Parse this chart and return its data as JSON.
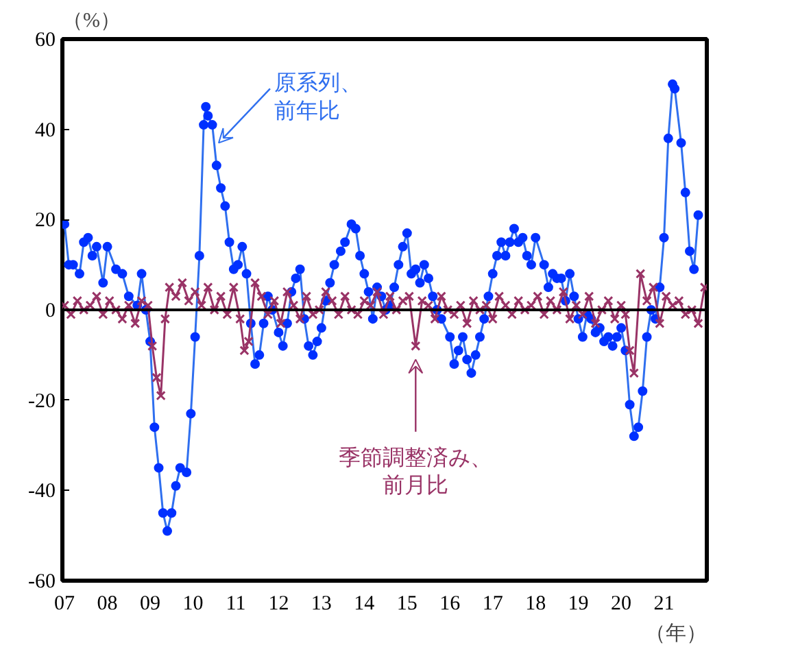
{
  "chart_data": {
    "type": "line",
    "ylabel": "（%）",
    "xlabel": "（年）",
    "xlim": [
      2006.95,
      2022.0
    ],
    "ylim": [
      -60,
      60
    ],
    "yticks": [
      -60,
      -40,
      -20,
      0,
      20,
      40,
      60
    ],
    "xticks": [
      {
        "value": 2007,
        "label": "07"
      },
      {
        "value": 2008,
        "label": "08"
      },
      {
        "value": 2009,
        "label": "09"
      },
      {
        "value": 2010,
        "label": "10"
      },
      {
        "value": 2011,
        "label": "11"
      },
      {
        "value": 2012,
        "label": "12"
      },
      {
        "value": 2013,
        "label": "13"
      },
      {
        "value": 2014,
        "label": "14"
      },
      {
        "value": 2015,
        "label": "15"
      },
      {
        "value": 2016,
        "label": "16"
      },
      {
        "value": 2017,
        "label": "17"
      },
      {
        "value": 2018,
        "label": "18"
      },
      {
        "value": 2019,
        "label": "19"
      },
      {
        "value": 2020,
        "label": "20"
      },
      {
        "value": 2021,
        "label": "21"
      }
    ],
    "grid": false,
    "line_style": "solid",
    "ref_lines": [
      {
        "axis": "y",
        "value": 0,
        "color": "#000000"
      }
    ],
    "series": [
      {
        "name": "原系列、前年比",
        "color": "#2f6fef",
        "marker": "circle",
        "x": [
          2007.0,
          2007.1,
          2007.2,
          2007.35,
          2007.45,
          2007.55,
          2007.65,
          2007.75,
          2007.9,
          2008.0,
          2008.2,
          2008.35,
          2008.5,
          2008.7,
          2008.8,
          2008.9,
          2009.0,
          2009.1,
          2009.2,
          2009.3,
          2009.4,
          2009.5,
          2009.6,
          2009.7,
          2009.85,
          2009.95,
          2010.05,
          2010.15,
          2010.25,
          2010.3,
          2010.35,
          2010.45,
          2010.55,
          2010.65,
          2010.75,
          2010.85,
          2010.95,
          2011.05,
          2011.15,
          2011.25,
          2011.35,
          2011.45,
          2011.55,
          2011.65,
          2011.75,
          2011.85,
          2012.0,
          2012.1,
          2012.2,
          2012.3,
          2012.4,
          2012.5,
          2012.6,
          2012.7,
          2012.8,
          2012.9,
          2013.0,
          2013.1,
          2013.2,
          2013.3,
          2013.45,
          2013.55,
          2013.7,
          2013.8,
          2013.9,
          2014.0,
          2014.1,
          2014.2,
          2014.3,
          2014.4,
          2014.5,
          2014.6,
          2014.7,
          2014.8,
          2014.9,
          2015.0,
          2015.1,
          2015.2,
          2015.3,
          2015.4,
          2015.5,
          2015.6,
          2015.7,
          2015.8,
          2016.0,
          2016.1,
          2016.2,
          2016.3,
          2016.4,
          2016.5,
          2016.6,
          2016.7,
          2016.8,
          2016.9,
          2017.0,
          2017.1,
          2017.2,
          2017.3,
          2017.4,
          2017.5,
          2017.6,
          2017.7,
          2017.8,
          2017.9,
          2018.0,
          2018.2,
          2018.3,
          2018.4,
          2018.5,
          2018.6,
          2018.7,
          2018.8,
          2018.9,
          2019.0,
          2019.1,
          2019.2,
          2019.3,
          2019.4,
          2019.5,
          2019.6,
          2019.7,
          2019.8,
          2019.9,
          2020.0,
          2020.1,
          2020.2,
          2020.3,
          2020.4,
          2020.5,
          2020.6,
          2020.7,
          2020.8,
          2020.9,
          2021.0,
          2021.1,
          2021.2,
          2021.25,
          2021.4,
          2021.5,
          2021.6,
          2021.7,
          2021.8
        ],
        "values": [
          19,
          10,
          10,
          8,
          15,
          16,
          12,
          14,
          6,
          14,
          9,
          8,
          3,
          1,
          8,
          0,
          -7,
          -26,
          -35,
          -45,
          -49,
          -45,
          -39,
          -35,
          -36,
          -23,
          -6,
          12,
          41,
          45,
          43,
          41,
          32,
          27,
          23,
          15,
          9,
          10,
          14,
          8,
          -3,
          -12,
          -10,
          -3,
          3,
          0,
          -5,
          -8,
          -3,
          4,
          7,
          9,
          -2,
          -8,
          -10,
          -7,
          -4,
          2,
          6,
          10,
          13,
          15,
          19,
          18,
          12,
          8,
          4,
          -2,
          5,
          3,
          0,
          1,
          5,
          10,
          14,
          17,
          8,
          9,
          6,
          10,
          7,
          3,
          0,
          -2,
          -6,
          -12,
          -9,
          -6,
          -11,
          -14,
          -10,
          -6,
          -2,
          3,
          8,
          12,
          15,
          12,
          15,
          18,
          15,
          16,
          12,
          10,
          16,
          10,
          5,
          8,
          7,
          7,
          2,
          8,
          3,
          -2,
          -6,
          -1,
          -2,
          -5,
          -4,
          -7,
          -6,
          -8,
          -6,
          -4,
          -9,
          -21,
          -28,
          -26,
          -18,
          -6,
          0,
          -2,
          5,
          16,
          38,
          50,
          49,
          37,
          26,
          13,
          9,
          21
        ]
      },
      {
        "name": "季節調整済み、前月比",
        "color": "#993366",
        "marker": "cross",
        "x": [
          2007.0,
          2007.15,
          2007.3,
          2007.45,
          2007.6,
          2007.75,
          2007.9,
          2008.05,
          2008.2,
          2008.35,
          2008.5,
          2008.65,
          2008.8,
          2008.95,
          2009.05,
          2009.15,
          2009.25,
          2009.35,
          2009.45,
          2009.6,
          2009.75,
          2009.9,
          2010.05,
          2010.2,
          2010.35,
          2010.5,
          2010.65,
          2010.8,
          2010.95,
          2011.1,
          2011.2,
          2011.3,
          2011.45,
          2011.6,
          2011.75,
          2011.9,
          2012.05,
          2012.2,
          2012.35,
          2012.5,
          2012.65,
          2012.8,
          2012.95,
          2013.1,
          2013.25,
          2013.4,
          2013.55,
          2013.7,
          2013.85,
          2014.0,
          2014.15,
          2014.3,
          2014.45,
          2014.6,
          2014.75,
          2014.9,
          2015.05,
          2015.2,
          2015.35,
          2015.5,
          2015.65,
          2015.8,
          2015.95,
          2016.1,
          2016.25,
          2016.4,
          2016.55,
          2016.7,
          2016.85,
          2017.0,
          2017.15,
          2017.3,
          2017.45,
          2017.6,
          2017.75,
          2017.9,
          2018.05,
          2018.2,
          2018.35,
          2018.5,
          2018.65,
          2018.8,
          2018.95,
          2019.1,
          2019.25,
          2019.4,
          2019.55,
          2019.7,
          2019.85,
          2020.0,
          2020.1,
          2020.2,
          2020.3,
          2020.45,
          2020.6,
          2020.75,
          2020.9,
          2021.05,
          2021.2,
          2021.35,
          2021.5,
          2021.65,
          2021.8,
          2021.95
        ],
        "values": [
          1,
          -1,
          2,
          0,
          1,
          3,
          -1,
          2,
          0,
          -2,
          1,
          -3,
          2,
          1,
          -8,
          -15,
          -19,
          -2,
          5,
          3,
          6,
          2,
          4,
          1,
          5,
          0,
          3,
          -1,
          5,
          -2,
          -9,
          -7,
          6,
          3,
          -1,
          2,
          -3,
          4,
          1,
          -2,
          3,
          -1,
          0,
          4,
          2,
          -1,
          3,
          0,
          -1,
          2,
          1,
          4,
          -1,
          3,
          0,
          2,
          3,
          -8,
          2,
          1,
          -2,
          3,
          0,
          -1,
          1,
          -3,
          2,
          0,
          1,
          -2,
          3,
          1,
          -1,
          2,
          0,
          1,
          3,
          -1,
          2,
          0,
          4,
          -2,
          1,
          -1,
          3,
          -3,
          0,
          2,
          -2,
          1,
          -1,
          -9,
          -14,
          8,
          2,
          5,
          -3,
          3,
          1,
          2,
          -1,
          0,
          -3,
          5
        ]
      }
    ]
  }
}
